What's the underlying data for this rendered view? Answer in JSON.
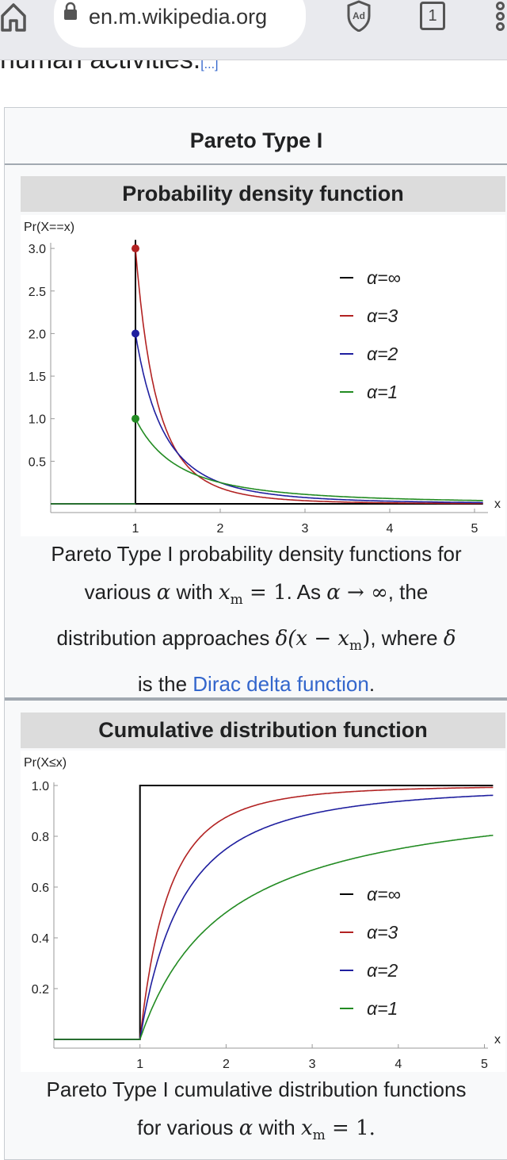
{
  "browser": {
    "url": "en.m.wikipedia.org",
    "tab_count": "1",
    "ad_block_label": "Ad"
  },
  "article": {
    "cut_text": "human activities.",
    "cut_ref": "[...]"
  },
  "infobox": {
    "title": "Pareto Type I",
    "pdf": {
      "header": "Probability density function",
      "caption": {
        "l1": "Pareto Type I probability density functions for",
        "l2a": "various ",
        "alpha": "α",
        "l2b": " with ",
        "xm": "x",
        "m": "m",
        "eq1": " = 1",
        "l2c": ". As ",
        "arrow": " → ∞",
        "l2d": ", the",
        "l3a": "distribution approaches ",
        "delta_expr": "δ(x − x",
        "delta_close": ")",
        "l3b": ", where ",
        "delta": "δ",
        "l4a": "is the ",
        "link": "Dirac delta function",
        "l4b": "."
      }
    },
    "cdf": {
      "header": "Cumulative distribution function",
      "caption": {
        "l1": "Pareto Type I cumulative distribution functions",
        "l2a": "for various ",
        "alpha": "α",
        "l2b": " with ",
        "xm": "x",
        "m": "m",
        "eq1": " = 1."
      }
    }
  },
  "chart_data": [
    {
      "type": "line",
      "title": "Probability density function",
      "ylabel": "Pr(X==x)",
      "xlabel": "x",
      "xlim": [
        0,
        5.1
      ],
      "ylim": [
        0,
        3.1
      ],
      "xticks": [
        "1",
        "2",
        "3",
        "4",
        "5"
      ],
      "yticks": [
        "0.5",
        "1.0",
        "1.5",
        "2.0",
        "2.5",
        "3.0"
      ],
      "legend_position": "top-right",
      "xm": 1,
      "series": [
        {
          "name": "α=∞",
          "alpha": "inf",
          "color": "#000000",
          "kind": "delta"
        },
        {
          "name": "α=3",
          "alpha": 3,
          "color": "#b22222",
          "x": [
            1,
            1.5,
            2,
            3,
            4,
            5
          ],
          "y": [
            3.0,
            0.593,
            0.188,
            0.037,
            0.012,
            0.005
          ]
        },
        {
          "name": "α=2",
          "alpha": 2,
          "color": "#1f1f9f",
          "x": [
            1,
            1.5,
            2,
            3,
            4,
            5
          ],
          "y": [
            2.0,
            0.593,
            0.25,
            0.074,
            0.031,
            0.016
          ]
        },
        {
          "name": "α=1",
          "alpha": 1,
          "color": "#228b22",
          "x": [
            1,
            1.5,
            2,
            3,
            4,
            5
          ],
          "y": [
            1.0,
            0.444,
            0.25,
            0.111,
            0.0625,
            0.04
          ]
        }
      ]
    },
    {
      "type": "line",
      "title": "Cumulative distribution function",
      "ylabel": "Pr(X≤x)",
      "xlabel": "x",
      "xlim": [
        0,
        5.1
      ],
      "ylim": [
        0,
        1.03
      ],
      "xticks": [
        "1",
        "2",
        "3",
        "4",
        "5"
      ],
      "yticks": [
        "0.2",
        "0.4",
        "0.6",
        "0.8",
        "1.0"
      ],
      "legend_position": "center-right",
      "xm": 1,
      "series": [
        {
          "name": "α=∞",
          "alpha": "inf",
          "color": "#000000",
          "kind": "step"
        },
        {
          "name": "α=3",
          "alpha": 3,
          "color": "#b22222",
          "x": [
            1,
            1.5,
            2,
            3,
            4,
            5
          ],
          "y": [
            0,
            0.704,
            0.875,
            0.963,
            0.984,
            0.992
          ]
        },
        {
          "name": "α=2",
          "alpha": 2,
          "color": "#1f1f9f",
          "x": [
            1,
            1.5,
            2,
            3,
            4,
            5
          ],
          "y": [
            0,
            0.556,
            0.75,
            0.889,
            0.9375,
            0.96
          ]
        },
        {
          "name": "α=1",
          "alpha": 1,
          "color": "#228b22",
          "x": [
            1,
            1.5,
            2,
            3,
            4,
            5
          ],
          "y": [
            0,
            0.333,
            0.5,
            0.667,
            0.75,
            0.8
          ]
        }
      ]
    }
  ]
}
